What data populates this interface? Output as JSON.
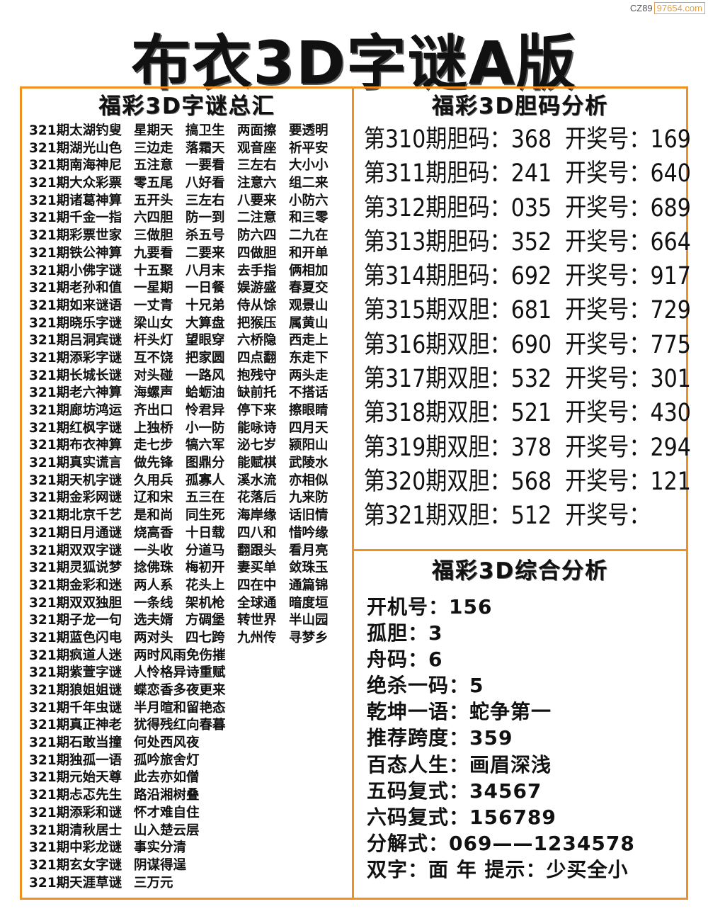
{
  "watermark": {
    "prefix": "CZ89",
    "site": "97654.com"
  },
  "title": "布衣3D字谜A版",
  "colors": {
    "border": "#f0901e",
    "watermark": "#e8a040"
  },
  "left": {
    "title": "福彩3D字谜总汇",
    "rows": [
      [
        "321期太湖钓叟",
        "星期天",
        "搞卫生",
        "两面擦",
        "要透明"
      ],
      [
        "321期湖光山色",
        "三边走",
        "落霜天",
        "观音座",
        "祈平安"
      ],
      [
        "321期南海神尼",
        "五注意",
        "一要看",
        "三左右",
        "大小小"
      ],
      [
        "321期大众彩票",
        "零五尾",
        "八好看",
        "注意六",
        "组二来"
      ],
      [
        "321期诸葛神算",
        "五开头",
        "三左右",
        "八要来",
        "小防六"
      ],
      [
        "321期千金一指",
        "六四胆",
        "防一到",
        "二注意",
        "和三零"
      ],
      [
        "321期彩票世家",
        "三做胆",
        "杀五号",
        "防六四",
        "二九在"
      ],
      [
        "321期铁公神算",
        "九要看",
        "二要来",
        "四做胆",
        "和开单"
      ],
      [
        "321期小佛字谜",
        "十五聚",
        "八月末",
        "去手指",
        "俩相加"
      ],
      [
        "321期老孙和值",
        "一星期",
        "一日餐",
        "娱游盛",
        "春夏交"
      ],
      [
        "321期如来谜语",
        "一丈青",
        "十兄弟",
        "侍从馀",
        "观景山"
      ],
      [
        "321期晓乐字谜",
        "梁山女",
        "大算盘",
        "把猴压",
        "属黄山"
      ],
      [
        "321期吕洞宾谜",
        "杆头灯",
        "望眼穿",
        "六桥隐",
        "西走上"
      ],
      [
        "321期添彩字谜",
        "互不饶",
        "把家圆",
        "四点翻",
        "东走下"
      ],
      [
        "321期长城长谜",
        "对头碰",
        "一路风",
        "抱残守",
        "两头走"
      ],
      [
        "321期老六神算",
        "海螺声",
        "蛤蛎油",
        "缺前托",
        "不搭话"
      ],
      [
        "321期廊坊鸿运",
        "齐出口",
        "怜君异",
        "停下来",
        "擦眼睛"
      ],
      [
        "321期红枫字谜",
        "上独桥",
        "小一防",
        "能咏诗",
        "四月天"
      ],
      [
        "321期布衣神算",
        "走七步",
        "犒六军",
        "泌七岁",
        "颍阳山"
      ],
      [
        "321期真实谎言",
        "做先锋",
        "图鼎分",
        "能赋棋",
        "武陵水"
      ],
      [
        "321期天机字谜",
        "久用兵",
        "孤寡人",
        "溪水流",
        "亦相似"
      ],
      [
        "321期金彩网谜",
        "辽和宋",
        "五三在",
        "花落后",
        "九来防"
      ],
      [
        "321期北京千艺",
        "是和尚",
        "同生死",
        "海岸缘",
        "话旧情"
      ],
      [
        "321期日月通谜",
        "烧高香",
        "十日载",
        "四八和",
        "惜吟缘"
      ],
      [
        "321期双双字谜",
        "一头收",
        "分道马",
        "翻跟头",
        "看月亮"
      ],
      [
        "321期灵狐说梦",
        "捻佛珠",
        "梅初开",
        "妻买单",
        "敛珠玉"
      ],
      [
        "321期金彩和迷",
        "两人系",
        "花头上",
        "四在中",
        "通篇锦"
      ],
      [
        "321期双双独胆",
        "一条线",
        "架机枪",
        "全球通",
        "暗度垣"
      ],
      [
        "321期子龙一句",
        "选夫婿",
        "方碉堡",
        "转世界",
        "半山园"
      ],
      [
        "321期蓝色闪电",
        "两对头",
        "四七跨",
        "九州传",
        "寻梦乡"
      ],
      [
        "321期疯道人迷",
        "两时风雨免伤摧"
      ],
      [
        "321期紫萱字谜",
        "人怜格异诗重赋"
      ],
      [
        "321期狼姐姐谜",
        "蝶恋香多夜更来"
      ],
      [
        "321期千年虫谜",
        "半月暄和留艳态"
      ],
      [
        "321期真正神老",
        "犹得残红向春暮"
      ],
      [
        "321期石敢当撞",
        "何处西风夜"
      ],
      [
        "321期独孤一语",
        "孤吟旅舍灯"
      ],
      [
        "321期元始天尊",
        "此去亦如僧"
      ],
      [
        "321期忐忑先生",
        "路沿湘树叠"
      ],
      [
        "321期添彩和谜",
        "怀才难自住"
      ],
      [
        "321期清秋居士",
        "山入楚云层"
      ],
      [
        "321期中彩龙谜",
        "事实分清"
      ],
      [
        "321期玄女字谜",
        "阴谋得逞"
      ],
      [
        "321期天涯草谜",
        "三万元"
      ]
    ]
  },
  "dan": {
    "title": "福彩3D胆码分析",
    "rows": [
      {
        "label": "第310期胆码：",
        "dan": "368",
        "draw_label": "开奖号：",
        "draw": "169"
      },
      {
        "label": "第311期胆码：",
        "dan": "241",
        "draw_label": "开奖号：",
        "draw": "640"
      },
      {
        "label": "第312期胆码：",
        "dan": "035",
        "draw_label": "开奖号：",
        "draw": "689"
      },
      {
        "label": "第313期胆码：",
        "dan": "352",
        "draw_label": "开奖号：",
        "draw": "664"
      },
      {
        "label": "第314期胆码：",
        "dan": "692",
        "draw_label": "开奖号：",
        "draw": "917"
      },
      {
        "label": "第315期双胆：",
        "dan": "681",
        "draw_label": "开奖号：",
        "draw": "729"
      },
      {
        "label": "第316期双胆：",
        "dan": "690",
        "draw_label": "开奖号：",
        "draw": "775"
      },
      {
        "label": "第317期双胆：",
        "dan": "532",
        "draw_label": "开奖号：",
        "draw": "301"
      },
      {
        "label": "第318期双胆：",
        "dan": "521",
        "draw_label": "开奖号：",
        "draw": "430"
      },
      {
        "label": "第319期双胆：",
        "dan": "378",
        "draw_label": "开奖号：",
        "draw": "294"
      },
      {
        "label": "第320期双胆：",
        "dan": "568",
        "draw_label": "开奖号：",
        "draw": "121"
      },
      {
        "label": "第321期双胆：",
        "dan": "512",
        "draw_label": "开奖号：",
        "draw": ""
      }
    ]
  },
  "summary": {
    "title": "福彩3D综合分析",
    "rows": [
      "开机号：156",
      "孤胆：3",
      "舟码：6",
      "绝杀一码：5",
      "乾坤一语：蛇争第一",
      "推荐跨度：359",
      "百态人生：画眉深浅",
      "五码复式：34567",
      "六码复式：156789",
      "分解式：069——1234578",
      "双字：面 年 提示：少买全小"
    ]
  }
}
